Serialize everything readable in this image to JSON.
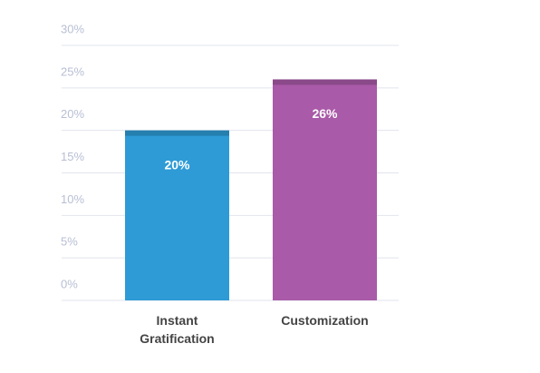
{
  "chart_data": {
    "type": "bar",
    "categories": [
      "Instant Gratification",
      "Customization"
    ],
    "values": [
      20,
      26
    ],
    "value_labels": [
      "20%",
      "26%"
    ],
    "colors": [
      "#2e9bd6",
      "#a95aa8"
    ],
    "ylim": [
      0,
      30
    ],
    "yticks": [
      {
        "value": 0,
        "label": "0%"
      },
      {
        "value": 5,
        "label": "5%"
      },
      {
        "value": 10,
        "label": "10%"
      },
      {
        "value": 15,
        "label": "15%"
      },
      {
        "value": 20,
        "label": "20%"
      },
      {
        "value": 25,
        "label": "25%"
      },
      {
        "value": 30,
        "label": "30%"
      }
    ],
    "grid": true
  }
}
